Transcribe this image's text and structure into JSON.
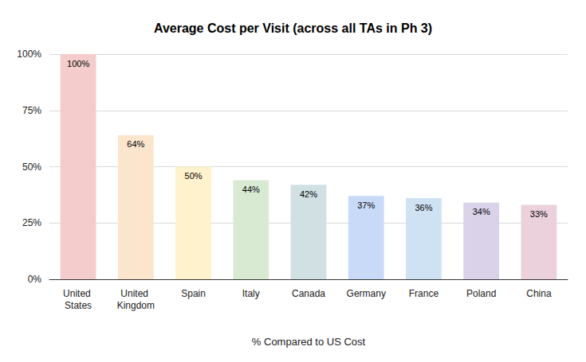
{
  "chart_data": {
    "type": "bar",
    "title": "Average Cost per Visit (across all TAs in Ph 3)",
    "xlabel": "% Compared to US Cost",
    "categories": [
      "United States",
      "United Kingdom",
      "Spain",
      "Italy",
      "Canada",
      "Germany",
      "France",
      "Poland",
      "China"
    ],
    "values": [
      100,
      64,
      50,
      44,
      42,
      37,
      36,
      34,
      33
    ],
    "value_labels": [
      "100%",
      "64%",
      "50%",
      "44%",
      "42%",
      "37%",
      "36%",
      "34%",
      "33%"
    ],
    "colors": [
      "#f4cccc",
      "#fce5cd",
      "#fff2cc",
      "#d9ead3",
      "#d0e0e3",
      "#c9daf8",
      "#cfe2f3",
      "#d9d2e9",
      "#ead1dc"
    ],
    "ylim": [
      0,
      100
    ],
    "yticks": [
      {
        "value": 0,
        "label": "0%"
      },
      {
        "value": 25,
        "label": "25%"
      },
      {
        "value": 50,
        "label": "50%"
      },
      {
        "value": 75,
        "label": "75%"
      },
      {
        "value": 100,
        "label": "100%"
      }
    ],
    "grid": true,
    "data_labels": true
  }
}
